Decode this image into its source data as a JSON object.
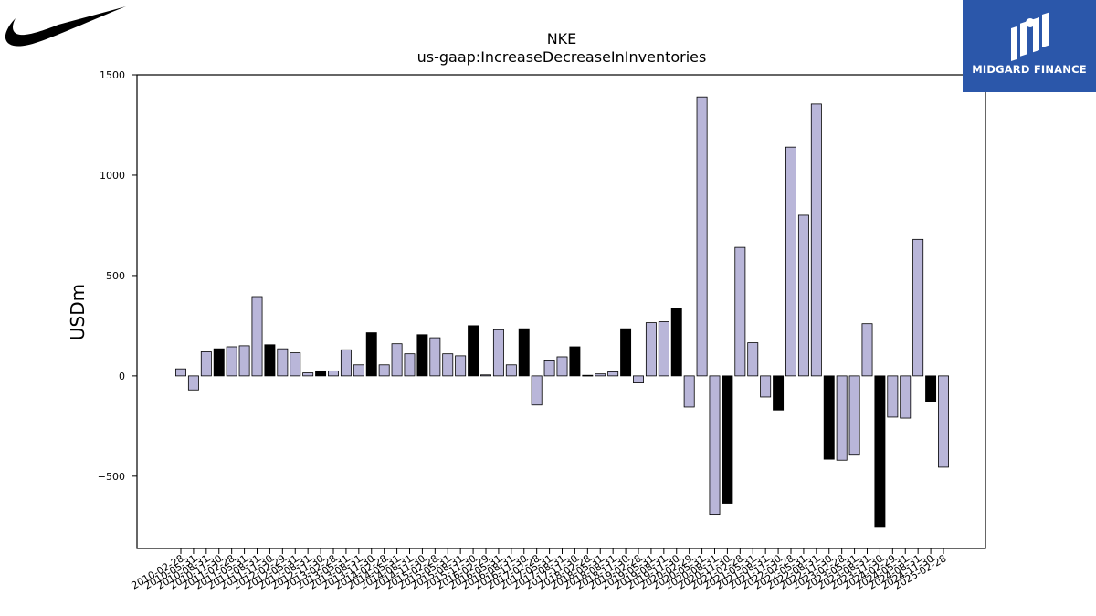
{
  "brand": {
    "company_logo_icon": "swoosh-icon",
    "publisher": "MIDGARD FINANCE",
    "publisher_color": "#2b57aa"
  },
  "chart_data": {
    "type": "bar",
    "title": "NKE",
    "subtitle": "us-gaap:IncreaseDecreaseInInventories",
    "xlabel": "",
    "ylabel": "USDm",
    "ylim": [
      -860,
      1500
    ],
    "yticks": [
      -500,
      0,
      500,
      1000,
      1500
    ],
    "ytick_labels": [
      "−500",
      "0",
      "500",
      "1000",
      "1500"
    ],
    "grid": false,
    "legend": "none",
    "colors": {
      "quarter": "#b9b6d9",
      "fiscal_year_end": "#000000",
      "edge": "#000000"
    },
    "categories": [
      "2010-02-28",
      "2010-05-31",
      "2010-08-31",
      "2010-11-30",
      "2011-02-28",
      "2011-05-31",
      "2011-08-31",
      "2011-11-30",
      "2012-02-29",
      "2012-05-31",
      "2012-08-31",
      "2012-11-30",
      "2013-02-28",
      "2013-05-31",
      "2013-08-31",
      "2013-11-30",
      "2014-02-28",
      "2014-05-31",
      "2014-08-31",
      "2014-11-30",
      "2015-02-28",
      "2015-05-31",
      "2015-08-31",
      "2015-11-30",
      "2016-02-29",
      "2016-05-31",
      "2016-08-31",
      "2016-11-30",
      "2017-02-28",
      "2017-05-31",
      "2017-08-31",
      "2017-11-30",
      "2018-02-28",
      "2018-05-31",
      "2018-08-31",
      "2018-11-30",
      "2019-02-28",
      "2019-05-31",
      "2019-08-31",
      "2019-11-30",
      "2020-02-29",
      "2020-05-31",
      "2020-08-31",
      "2020-11-30",
      "2021-02-28",
      "2021-05-31",
      "2021-08-31",
      "2021-11-30",
      "2022-02-28",
      "2022-05-31",
      "2022-08-31",
      "2022-11-30",
      "2023-02-28",
      "2023-05-31",
      "2023-08-31",
      "2023-11-30",
      "2024-02-29",
      "2024-05-31",
      "2024-08-31",
      "2024-11-30",
      "2025-02-28"
    ],
    "values": [
      35,
      -70,
      120,
      135,
      145,
      150,
      395,
      155,
      135,
      115,
      15,
      25,
      25,
      130,
      55,
      215,
      55,
      160,
      110,
      205,
      190,
      110,
      100,
      250,
      5,
      230,
      55,
      235,
      -145,
      75,
      95,
      145,
      3,
      10,
      20,
      235,
      -35,
      265,
      270,
      335,
      -155,
      1390,
      -690,
      -635,
      640,
      165,
      -105,
      -170,
      1140,
      800,
      1355,
      -415,
      -420,
      -395,
      260,
      -755,
      -205,
      -210,
      680,
      -130,
      -455
    ],
    "fiscal_year_end_flags": [
      0,
      0,
      0,
      1,
      0,
      0,
      0,
      1,
      0,
      0,
      0,
      1,
      0,
      0,
      0,
      1,
      0,
      0,
      0,
      1,
      0,
      0,
      0,
      1,
      0,
      0,
      0,
      1,
      0,
      0,
      0,
      1,
      0,
      0,
      0,
      1,
      0,
      0,
      0,
      1,
      0,
      0,
      0,
      1,
      0,
      0,
      0,
      1,
      0,
      0,
      0,
      1,
      0,
      0,
      0,
      1,
      0,
      0,
      0,
      1,
      0
    ]
  }
}
